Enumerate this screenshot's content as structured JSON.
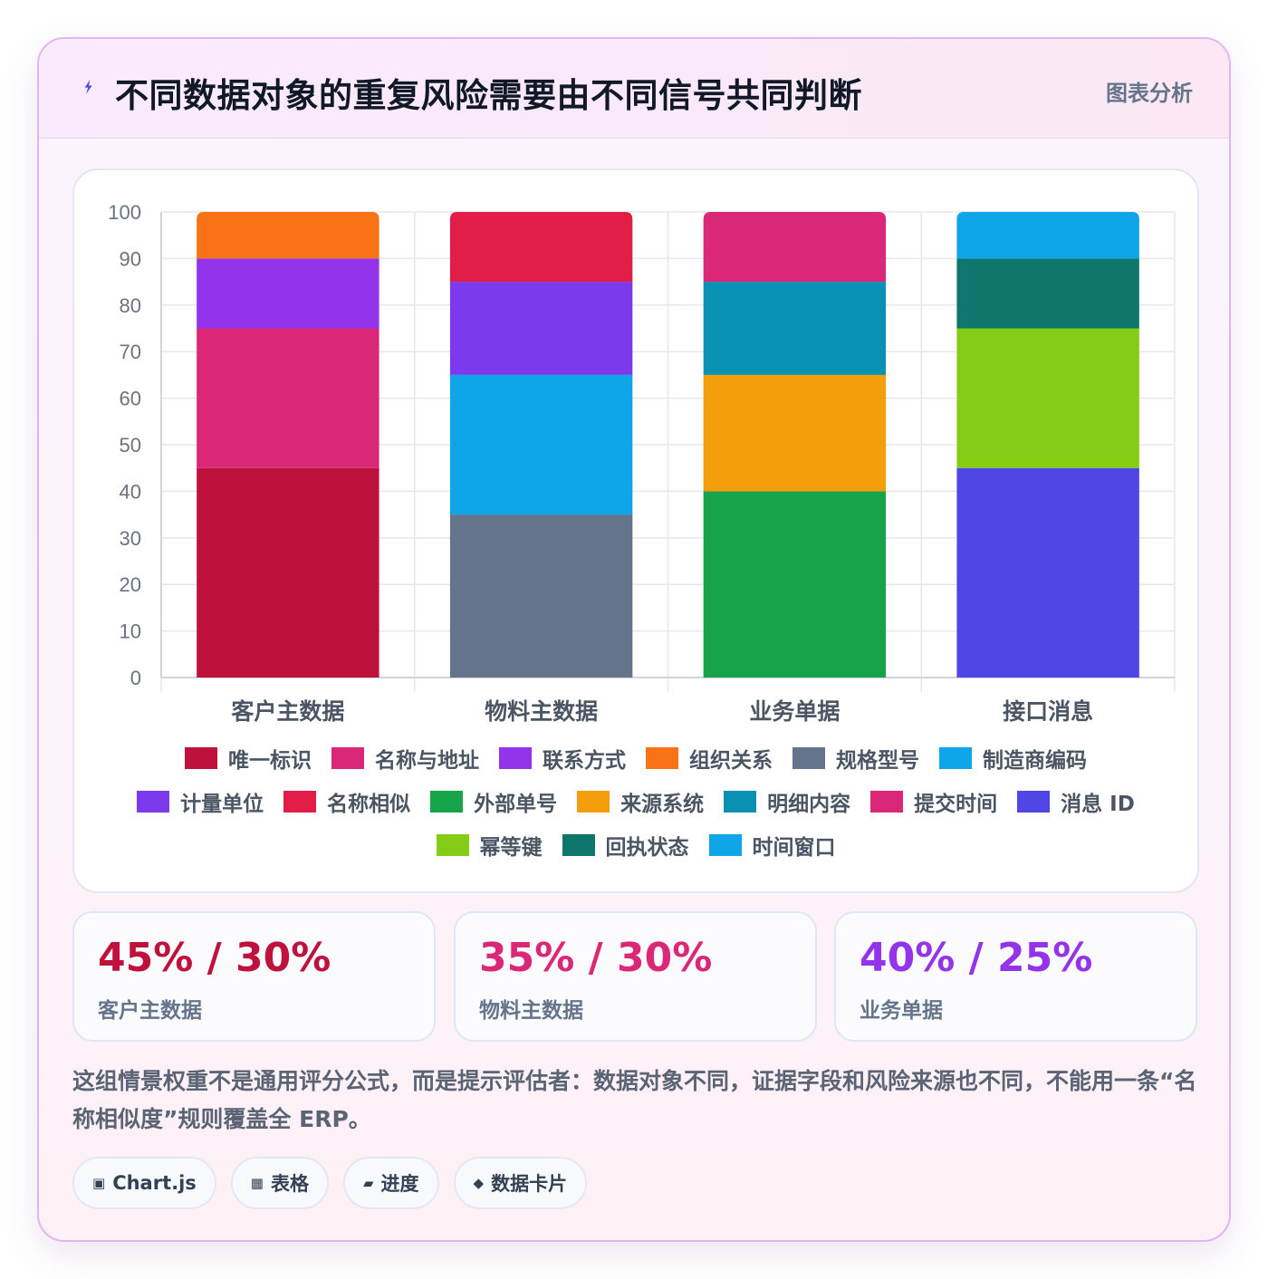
{
  "header": {
    "title": "不同数据对象的重复风险需要由不同信号共同判断",
    "tag": "图表分析"
  },
  "colors": {
    "accent": "#4f46e5"
  },
  "chart_data": {
    "type": "bar",
    "stacked": true,
    "categories": [
      "客户主数据",
      "物料主数据",
      "业务单据",
      "接口消息"
    ],
    "ylim": [
      0,
      100
    ],
    "yticks": [
      0,
      10,
      20,
      30,
      40,
      50,
      60,
      70,
      80,
      90,
      100
    ],
    "grid": true,
    "legend_placement": "bottom",
    "series": [
      {
        "name": "唯一标识",
        "color": "#be123c",
        "values": [
          45,
          0,
          0,
          0
        ]
      },
      {
        "name": "名称与地址",
        "color": "#db2777",
        "values": [
          30,
          0,
          0,
          0
        ]
      },
      {
        "name": "联系方式",
        "color": "#9333ea",
        "values": [
          15,
          0,
          0,
          0
        ]
      },
      {
        "name": "组织关系",
        "color": "#f97316",
        "values": [
          10,
          0,
          0,
          0
        ]
      },
      {
        "name": "规格型号",
        "color": "#64748b",
        "values": [
          0,
          35,
          0,
          0
        ]
      },
      {
        "name": "制造商编码",
        "color": "#0ea5e9",
        "values": [
          0,
          30,
          0,
          0
        ]
      },
      {
        "name": "计量单位",
        "color": "#7c3aed",
        "values": [
          0,
          20,
          0,
          0
        ]
      },
      {
        "name": "名称相似",
        "color": "#e11d48",
        "values": [
          0,
          15,
          0,
          0
        ]
      },
      {
        "name": "外部单号",
        "color": "#16a34a",
        "values": [
          0,
          0,
          40,
          0
        ]
      },
      {
        "name": "来源系统",
        "color": "#f59e0b",
        "values": [
          0,
          0,
          25,
          0
        ]
      },
      {
        "name": "明细内容",
        "color": "#0891b2",
        "values": [
          0,
          0,
          20,
          0
        ]
      },
      {
        "name": "提交时间",
        "color": "#db2777",
        "values": [
          0,
          0,
          15,
          0
        ]
      },
      {
        "name": "消息 ID",
        "color": "#4f46e5",
        "values": [
          0,
          0,
          0,
          45
        ]
      },
      {
        "name": "幂等键",
        "color": "#84cc16",
        "values": [
          0,
          0,
          0,
          30
        ]
      },
      {
        "name": "回执状态",
        "color": "#0f766e",
        "values": [
          0,
          0,
          0,
          15
        ]
      },
      {
        "name": "时间窗口",
        "color": "#0ea5e9",
        "values": [
          0,
          0,
          0,
          10
        ]
      }
    ]
  },
  "stats": [
    {
      "value": "45% / 30%",
      "label": "客户主数据",
      "color": "#be123c"
    },
    {
      "value": "35% / 30%",
      "label": "物料主数据",
      "color": "#db2777"
    },
    {
      "value": "40% / 25%",
      "label": "业务单据",
      "color": "#9333ea"
    }
  ],
  "note": "这组情景权重不是通用评分公式，而是提示评估者：数据对象不同，证据字段和风险来源也不同，不能用一条“名称相似度”规则覆盖全 ERP。",
  "chips": [
    {
      "icon": "▣",
      "icon_name": "chart-icon",
      "label": "Chart.js"
    },
    {
      "icon": "▦",
      "icon_name": "table-icon",
      "label": "表格"
    },
    {
      "icon": "▰",
      "icon_name": "progress-icon",
      "label": "进度"
    },
    {
      "icon": "◆",
      "icon_name": "diamond-icon",
      "label": "数据卡片"
    }
  ]
}
